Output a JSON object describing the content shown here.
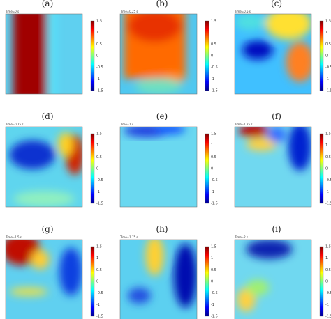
{
  "panels": [
    {
      "label": "(a)",
      "time": "Time=0 s"
    },
    {
      "label": "(b)",
      "time": "Time=0.25 s"
    },
    {
      "label": "(c)",
      "time": "Time=0.5 s"
    },
    {
      "label": "(d)",
      "time": "Time=0.75 s"
    },
    {
      "label": "(e)",
      "time": "Time=1 s"
    },
    {
      "label": "(f)",
      "time": "Time=1.25 s"
    },
    {
      "label": "(g)",
      "time": "Time=1.5 s"
    },
    {
      "label": "(h)",
      "time": "Time=1.75 s"
    },
    {
      "label": "(i)",
      "time": "Time=2 s"
    }
  ],
  "colorbar": {
    "ticks": [
      "1.5",
      "1",
      "0.5",
      "0",
      "-0.5",
      "-1",
      "-1.5"
    ]
  }
}
